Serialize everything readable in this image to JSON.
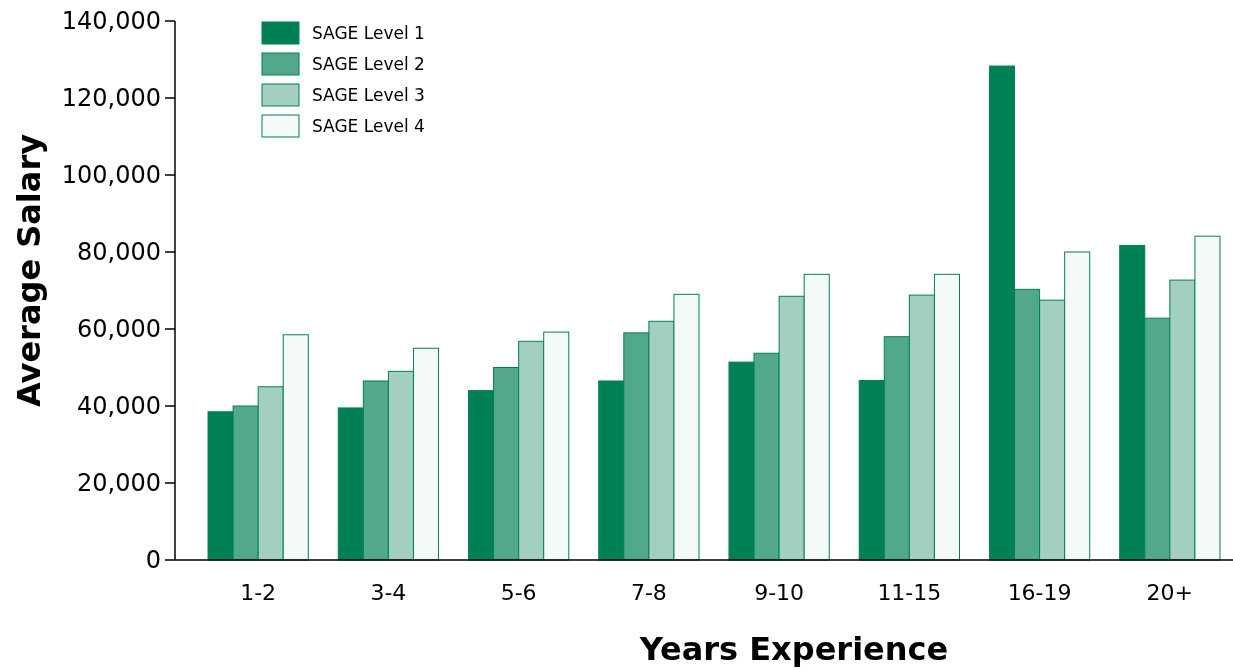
{
  "chart_data": {
    "type": "bar",
    "xlabel": "Years Experience",
    "ylabel": "Average Salary",
    "categories": [
      "1-2",
      "3-4",
      "5-6",
      "7-8",
      "9-10",
      "11-15",
      "16-19",
      "20+"
    ],
    "series": [
      {
        "name": "SAGE Level 1",
        "color": "#008055",
        "values": [
          38500,
          39500,
          44000,
          46500,
          51400,
          46600,
          128300,
          81700
        ]
      },
      {
        "name": "SAGE Level 2",
        "color": "#52a88a",
        "values": [
          40000,
          46500,
          50000,
          59000,
          53700,
          58000,
          70300,
          62800
        ]
      },
      {
        "name": "SAGE Level 3",
        "color": "#a2cfbe",
        "values": [
          45000,
          49000,
          56800,
          62000,
          68500,
          68800,
          67500,
          72700
        ]
      },
      {
        "name": "SAGE Level 4",
        "color": "#f4faf7",
        "values": [
          58500,
          55000,
          59200,
          69000,
          74200,
          74200,
          80000,
          84100
        ]
      }
    ],
    "ylim": [
      0,
      140000
    ],
    "yticks": [
      {
        "value": 0,
        "label": "0"
      },
      {
        "value": 20000,
        "label": "20,000"
      },
      {
        "value": 40000,
        "label": "40,000"
      },
      {
        "value": 60000,
        "label": "60,000"
      },
      {
        "value": 80000,
        "label": "80,000"
      },
      {
        "value": 100000,
        "label": "100,000"
      },
      {
        "value": 120000,
        "label": "120,000"
      },
      {
        "value": 140000,
        "label": "140,000"
      }
    ],
    "grid": false,
    "legend": "top left"
  }
}
